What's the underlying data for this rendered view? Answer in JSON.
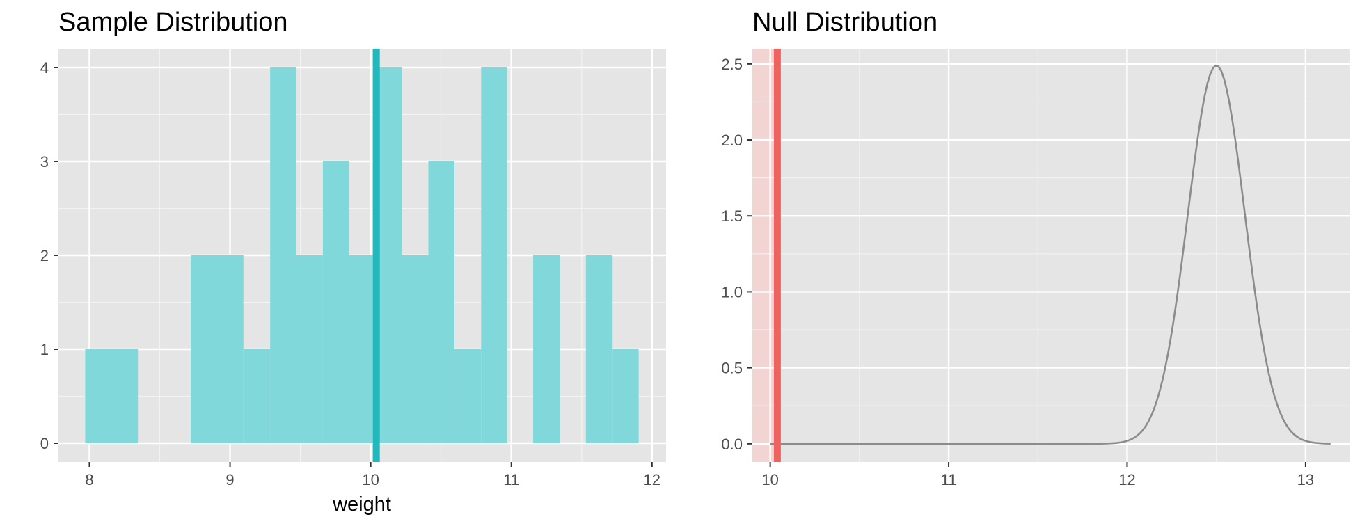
{
  "chart_data": [
    {
      "type": "bar",
      "title": "Sample Distribution",
      "xlabel": "weight",
      "ylabel": "",
      "xlim": [
        7.78,
        12.1
      ],
      "ylim": [
        -0.2,
        4.2
      ],
      "xticks": [
        8,
        9,
        10,
        11,
        12
      ],
      "yticks": [
        0,
        1,
        2,
        3,
        4
      ],
      "bin_width": 0.1875,
      "bins": [
        {
          "start": 7.97,
          "end": 8.345,
          "count": 1
        },
        {
          "start": 8.72,
          "end": 9.095,
          "count": 2
        },
        {
          "start": 9.095,
          "end": 9.285,
          "count": 1
        },
        {
          "start": 9.285,
          "end": 9.47,
          "count": 4
        },
        {
          "start": 9.47,
          "end": 9.66,
          "count": 2
        },
        {
          "start": 9.66,
          "end": 9.845,
          "count": 3
        },
        {
          "start": 9.845,
          "end": 10.035,
          "count": 2
        },
        {
          "start": 10.035,
          "end": 10.22,
          "count": 4
        },
        {
          "start": 10.22,
          "end": 10.41,
          "count": 2
        },
        {
          "start": 10.41,
          "end": 10.595,
          "count": 3
        },
        {
          "start": 10.595,
          "end": 10.785,
          "count": 1
        },
        {
          "start": 10.785,
          "end": 10.97,
          "count": 4
        },
        {
          "start": 11.155,
          "end": 11.345,
          "count": 2
        },
        {
          "start": 11.53,
          "end": 11.72,
          "count": 2
        },
        {
          "start": 11.72,
          "end": 11.905,
          "count": 1
        }
      ],
      "reference_line_x": 10.04,
      "fill_color": "#80d8da",
      "line_color": "#22b8bd"
    },
    {
      "type": "line",
      "title": "Null Distribution",
      "xlabel": "",
      "ylabel": "",
      "xlim": [
        9.9,
        13.25
      ],
      "ylim": [
        -0.12,
        2.6
      ],
      "xticks": [
        10,
        11,
        12,
        13
      ],
      "yticks": [
        0.0,
        0.5,
        1.0,
        1.5,
        2.0,
        2.5
      ],
      "ytick_labels": [
        "0.0",
        "0.5",
        "1.0",
        "1.5",
        "2.0",
        "2.5"
      ],
      "density_mean": 12.5,
      "density_sd": 0.16,
      "density_peak": 2.49,
      "x_range": [
        10.0,
        13.14
      ],
      "observed_stat": 10.04,
      "shade_direction": "left",
      "line_color": "#f0625f",
      "shade_color": "#f2d4d3",
      "curve_color": "#8c8c8c"
    }
  ]
}
